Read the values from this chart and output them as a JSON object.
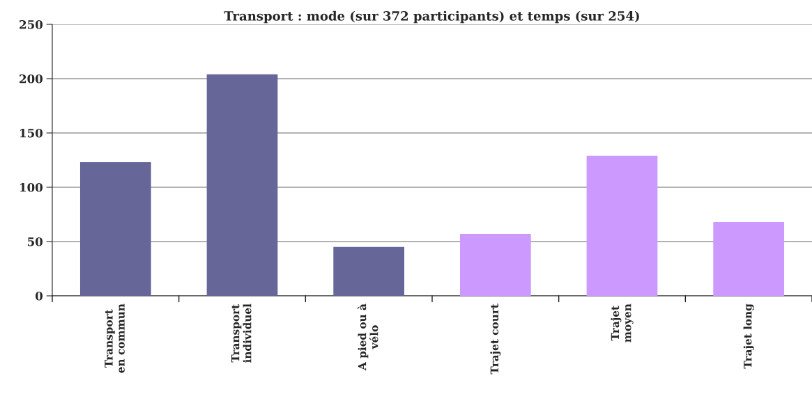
{
  "chart_data": {
    "type": "bar",
    "title": "Transport : mode (sur 372 participants) et temps (sur 254)",
    "categories": [
      "Transport\nen commun",
      "Transport\nindividuel",
      "A pied ou à\nvélo",
      "Trajet court",
      "Trajet\nmoyen",
      "Trajet long"
    ],
    "values": [
      123,
      204,
      45,
      57,
      129,
      68
    ],
    "colors": [
      "#666699",
      "#666699",
      "#666699",
      "#cc99ff",
      "#cc99ff",
      "#cc99ff"
    ],
    "ylim": [
      0,
      250
    ],
    "yticks": [
      0,
      50,
      100,
      150,
      200,
      250
    ],
    "grid": "y"
  }
}
